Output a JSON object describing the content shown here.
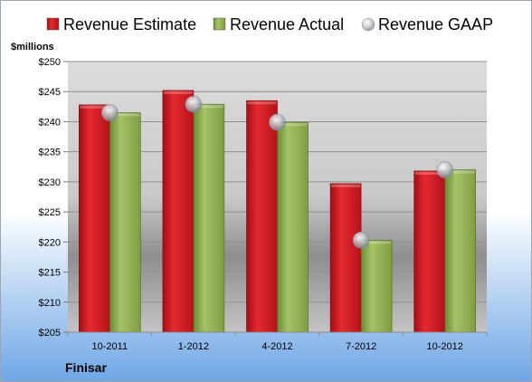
{
  "chart_data": {
    "type": "bar",
    "title": "",
    "company": "Finisar",
    "ylabel": "$millions",
    "xlabel": "",
    "categories": [
      "10-2011",
      "1-2012",
      "4-2012",
      "7-2012",
      "10-2012"
    ],
    "series": [
      {
        "name": "Revenue Estimate",
        "kind": "bar",
        "color": "#c8141c",
        "values": [
          242.8,
          245.2,
          243.5,
          229.7,
          231.8
        ]
      },
      {
        "name": "Revenue Actual",
        "kind": "bar",
        "color": "#8aac4a",
        "values": [
          241.5,
          242.9,
          239.9,
          220.3,
          232.0
        ]
      },
      {
        "name": "Revenue GAAP",
        "kind": "marker",
        "color": "#b8bcc4",
        "values": [
          241.5,
          242.9,
          239.9,
          220.3,
          232.0
        ]
      }
    ],
    "ylim": [
      205,
      250
    ],
    "yticks": [
      205,
      210,
      215,
      220,
      225,
      230,
      235,
      240,
      245,
      250
    ],
    "ytick_labels": [
      "$205",
      "$210",
      "$215",
      "$220",
      "$225",
      "$230",
      "$235",
      "$240",
      "$245",
      "$250"
    ],
    "grid": true,
    "legend_position": "top"
  }
}
